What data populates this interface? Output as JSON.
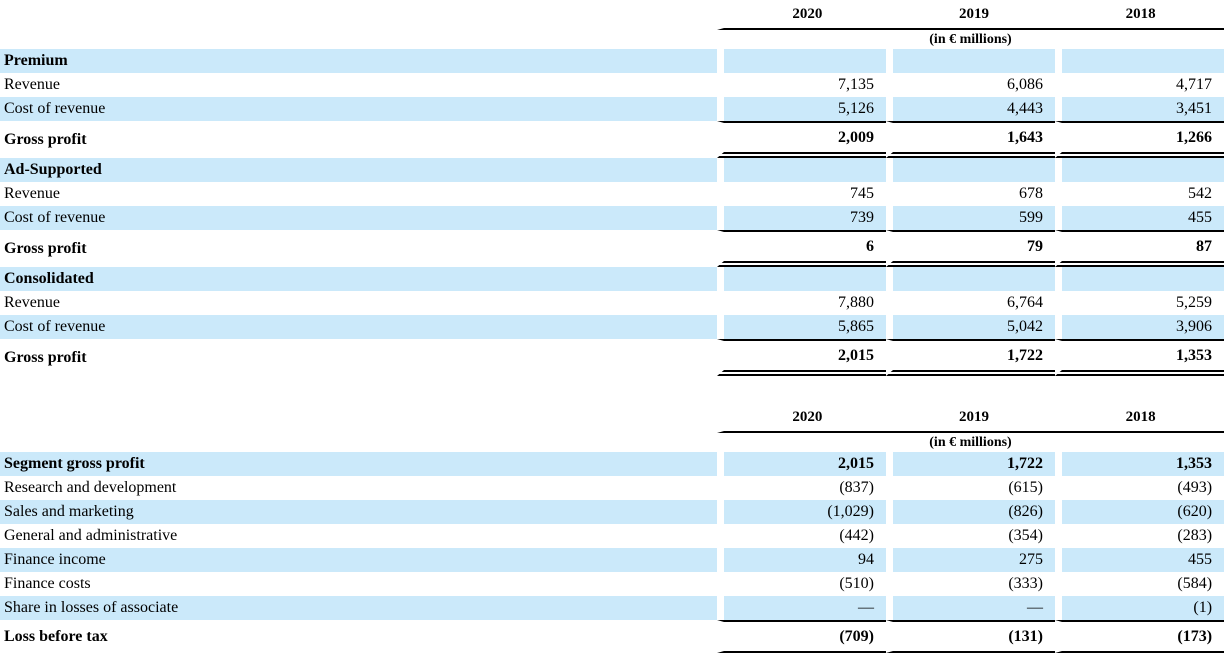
{
  "colors": {
    "row_highlight": "#cbe9fa",
    "rule": "#000000",
    "text": "#000000"
  },
  "table1": {
    "years": [
      "2020",
      "2019",
      "2018"
    ],
    "unit_note": "(in € millions)",
    "rows": [
      {
        "label": "Premium",
        "values": [
          "",
          "",
          ""
        ]
      },
      {
        "label": "Revenue",
        "values": [
          "7,135",
          "6,086",
          "4,717"
        ]
      },
      {
        "label": "Cost of revenue",
        "values": [
          "5,126",
          "4,443",
          "3,451"
        ]
      },
      {
        "label": "Gross profit",
        "values": [
          "2,009",
          "1,643",
          "1,266"
        ]
      },
      {
        "label": "Ad-Supported",
        "values": [
          "",
          "",
          ""
        ]
      },
      {
        "label": "Revenue",
        "values": [
          "745",
          "678",
          "542"
        ]
      },
      {
        "label": "Cost of revenue",
        "values": [
          "739",
          "599",
          "455"
        ]
      },
      {
        "label": "Gross profit",
        "values": [
          "6",
          "79",
          "87"
        ]
      },
      {
        "label": "Consolidated",
        "values": [
          "",
          "",
          ""
        ]
      },
      {
        "label": "Revenue",
        "values": [
          "7,880",
          "6,764",
          "5,259"
        ]
      },
      {
        "label": "Cost of revenue",
        "values": [
          "5,865",
          "5,042",
          "3,906"
        ]
      },
      {
        "label": "Gross profit",
        "values": [
          "2,015",
          "1,722",
          "1,353"
        ]
      }
    ]
  },
  "table2": {
    "years": [
      "2020",
      "2019",
      "2018"
    ],
    "unit_note": "(in € millions)",
    "rows": [
      {
        "label": "Segment gross profit",
        "values": [
          "2,015",
          "1,722",
          "1,353"
        ]
      },
      {
        "label": "Research and development",
        "values": [
          "(837)",
          "(615)",
          "(493)"
        ]
      },
      {
        "label": "Sales and marketing",
        "values": [
          "(1,029)",
          "(826)",
          "(620)"
        ]
      },
      {
        "label": "General and administrative",
        "values": [
          "(442)",
          "(354)",
          "(283)"
        ]
      },
      {
        "label": "Finance income",
        "values": [
          "94",
          "275",
          "455"
        ]
      },
      {
        "label": "Finance costs",
        "values": [
          "(510)",
          "(333)",
          "(584)"
        ]
      },
      {
        "label": "Share in losses of associate",
        "values": [
          "—",
          "—",
          "(1)"
        ]
      },
      {
        "label": "Loss before tax",
        "values": [
          "(709)",
          "(131)",
          "(173)"
        ]
      }
    ]
  }
}
